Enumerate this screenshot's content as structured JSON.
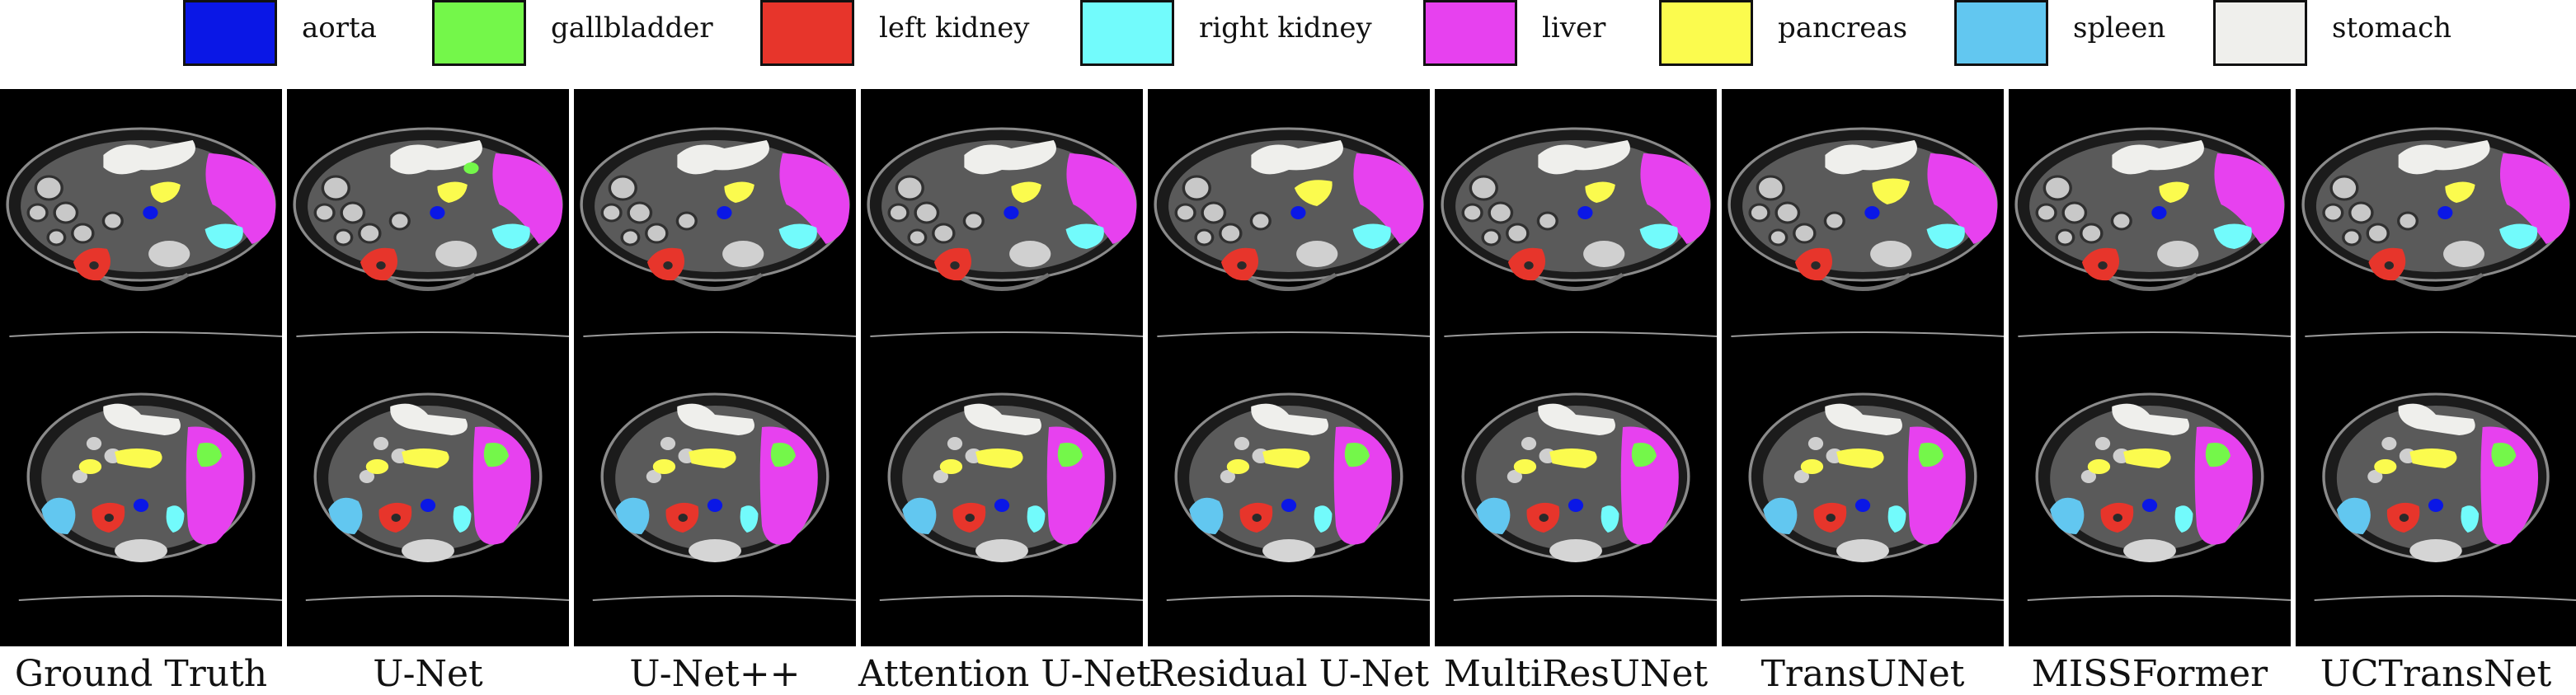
{
  "legend": [
    {
      "label": "aorta",
      "color": "#0a17e6",
      "icon": "aorta-swatch"
    },
    {
      "label": "gallbladder",
      "color": "#74f74a",
      "icon": "gallbladder-swatch"
    },
    {
      "label": "left kidney",
      "color": "#e7352b",
      "icon": "left-kidney-swatch"
    },
    {
      "label": "right kidney",
      "color": "#72fbfc",
      "icon": "right-kidney-swatch"
    },
    {
      "label": "liver",
      "color": "#e741ef",
      "icon": "liver-swatch"
    },
    {
      "label": "pancreas",
      "color": "#fbfb4e",
      "icon": "pancreas-swatch"
    },
    {
      "label": "spleen",
      "color": "#62c7f0",
      "icon": "spleen-swatch"
    },
    {
      "label": "stomach",
      "color": "#efefec",
      "icon": "stomach-swatch"
    }
  ],
  "columns": [
    {
      "label": "Ground Truth"
    },
    {
      "label": "U-Net"
    },
    {
      "label": "U-Net++"
    },
    {
      "label": "Attention U-Net"
    },
    {
      "label": "Residual U-Net"
    },
    {
      "label": "MultiResUNet"
    },
    {
      "label": "TransUNet"
    },
    {
      "label": "MISSFormer"
    },
    {
      "label": "UCTransNet"
    }
  ]
}
